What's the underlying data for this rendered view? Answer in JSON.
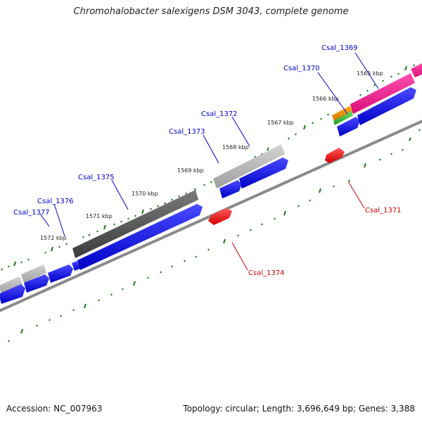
{
  "map": {
    "title": "Chromohalobacter salexigens DSM 3043, complete genome",
    "accession": "Accession: NC_007963",
    "summary": "Topology: circular; Length: 3,696,649 bp; Genes: 3,388"
  },
  "scale_labels": [
    "1565 kbp",
    "1566 kbp",
    "1567 kbp",
    "1568 kbp",
    "1569 kbp",
    "1570 kbp",
    "1571 kbp",
    "1572 kbp"
  ],
  "genes_forward": [
    "Csal_1369",
    "Csal_1370",
    "Csal_1372",
    "Csal_1373",
    "Csal_1375",
    "Csal_1376",
    "Csal_1377"
  ],
  "genes_reverse": [
    "Csal_1371",
    "Csal_1374"
  ],
  "colors": {
    "forward_label": "#0000cc",
    "reverse_label": "#cc0000",
    "cds_forward": "#0000ee",
    "cds_reverse": "#ee0000",
    "blast_dark": "#555555",
    "blast_light": "#bbbbbb",
    "blast_magenta": "#e0208a",
    "blast_orange": "#e08a00",
    "blast_green": "#33bb33",
    "backbone": "#888888",
    "tick": "#1a7a1a"
  }
}
